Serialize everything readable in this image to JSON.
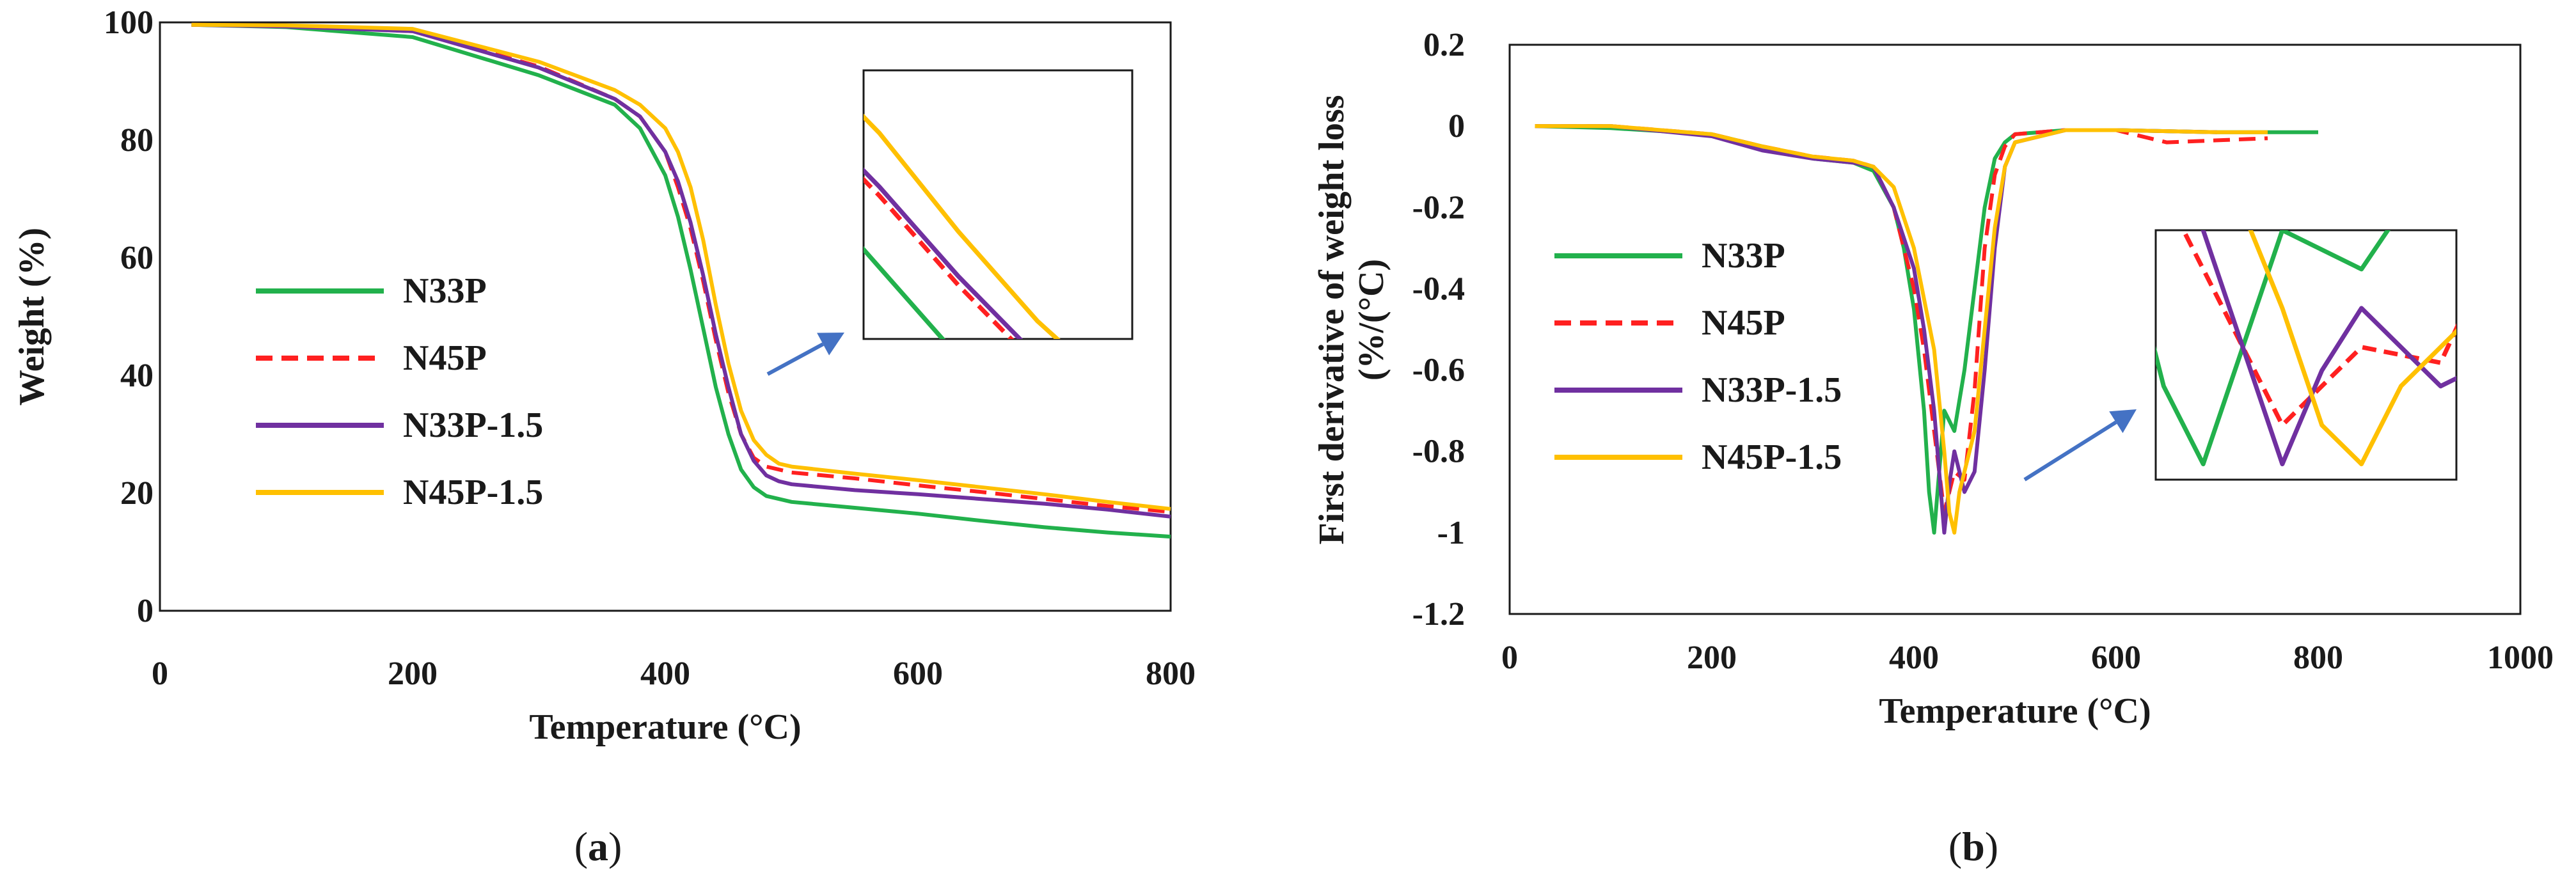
{
  "chart_data": [
    {
      "type": "line",
      "panel_label": "(a)",
      "panel_letter": "a",
      "title": "",
      "xlabel": "Temperature (°C)",
      "ylabel": "Weight (%)",
      "xlim": [
        0,
        800
      ],
      "ylim": [
        0,
        100
      ],
      "xticks": [
        0,
        200,
        400,
        600,
        800
      ],
      "yticks": [
        0,
        20,
        40,
        60,
        80,
        100
      ],
      "xtick_labels": [
        "0",
        "200",
        "400",
        "600",
        "800"
      ],
      "ytick_labels": [
        "0",
        "20",
        "40",
        "60",
        "80",
        "100"
      ],
      "grid": false,
      "legend_position": "left-center",
      "series": [
        {
          "name": "N33P",
          "color": "#22b14c",
          "dash": "solid",
          "x": [
            25,
            100,
            200,
            300,
            360,
            380,
            400,
            410,
            420,
            430,
            440,
            450,
            460,
            470,
            480,
            490,
            500,
            550,
            600,
            650,
            700,
            750,
            800
          ],
          "y": [
            99.6,
            99.2,
            97.5,
            91,
            86,
            82,
            74,
            67,
            58,
            48,
            38,
            30,
            24,
            21,
            19.5,
            19,
            18.5,
            17.5,
            16.5,
            15.3,
            14.2,
            13.3,
            12.6
          ]
        },
        {
          "name": "N45P",
          "color": "#ff2020",
          "dash": "dashed",
          "x": [
            25,
            100,
            200,
            300,
            360,
            380,
            400,
            410,
            420,
            430,
            440,
            450,
            460,
            470,
            480,
            490,
            500,
            550,
            600,
            650,
            700,
            750,
            800
          ],
          "y": [
            99.6,
            99.4,
            98.5,
            92.5,
            87,
            84,
            78,
            72,
            65,
            56,
            46,
            37,
            30,
            26,
            24.5,
            24,
            23.5,
            22.5,
            21.3,
            20.2,
            19,
            17.8,
            16.8
          ]
        },
        {
          "name": "N33P-1.5",
          "color": "#7030a0",
          "dash": "solid",
          "x": [
            25,
            100,
            200,
            300,
            360,
            380,
            400,
            410,
            420,
            430,
            440,
            450,
            460,
            470,
            480,
            490,
            500,
            550,
            600,
            650,
            700,
            750,
            800
          ],
          "y": [
            99.6,
            99.3,
            98.5,
            92.3,
            87,
            84,
            78,
            73,
            66,
            57,
            47,
            38,
            30,
            25.5,
            23,
            22,
            21.5,
            20.5,
            19.8,
            19,
            18.2,
            17.2,
            16
          ]
        },
        {
          "name": "N45P-1.5",
          "color": "#ffc000",
          "dash": "solid",
          "x": [
            25,
            100,
            200,
            300,
            360,
            380,
            400,
            410,
            420,
            430,
            440,
            450,
            460,
            470,
            480,
            490,
            500,
            550,
            600,
            650,
            700,
            750,
            800
          ],
          "y": [
            99.6,
            99.5,
            98.9,
            93.3,
            88.5,
            86,
            82,
            78,
            72,
            63,
            52,
            42,
            34,
            29,
            26.5,
            25,
            24.5,
            23.3,
            22.2,
            21,
            19.8,
            18.5,
            17.3
          ]
        }
      ]
    },
    {
      "type": "line",
      "panel_label": "(b)",
      "panel_letter": "b",
      "title": "",
      "xlabel": "Temperature (°C)",
      "ylabel_line1": "First derivative of weight loss",
      "ylabel_line2": "(%/(°C)",
      "xlim": [
        0,
        1000
      ],
      "ylim": [
        -1.2,
        0.2
      ],
      "xticks": [
        0,
        200,
        400,
        600,
        800,
        1000
      ],
      "yticks": [
        0.2,
        0,
        -0.2,
        -0.4,
        -0.6,
        -0.8,
        -1,
        -1.2
      ],
      "xtick_labels": [
        "0",
        "200",
        "400",
        "600",
        "800",
        "1000"
      ],
      "ytick_labels": [
        "0.2",
        "0",
        "-0.2",
        "-0.4",
        "-0.6",
        "-0.8",
        "-1",
        "-1.2"
      ],
      "grid": false,
      "legend_position": "left-center",
      "series": [
        {
          "name": "N33P",
          "color": "#22b14c",
          "dash": "solid",
          "x": [
            25,
            100,
            200,
            250,
            300,
            340,
            360,
            380,
            390,
            400,
            410,
            415,
            420,
            425,
            430,
            440,
            450,
            460,
            470,
            480,
            490,
            500,
            550,
            600,
            700,
            800
          ],
          "y": [
            0,
            -0.005,
            -0.02,
            -0.05,
            -0.08,
            -0.09,
            -0.11,
            -0.2,
            -0.3,
            -0.45,
            -0.7,
            -0.9,
            -1.0,
            -0.85,
            -0.7,
            -0.75,
            -0.6,
            -0.4,
            -0.2,
            -0.08,
            -0.04,
            -0.02,
            -0.01,
            -0.01,
            -0.015,
            -0.015
          ]
        },
        {
          "name": "N45P",
          "color": "#ff2020",
          "dash": "dashed",
          "x": [
            25,
            100,
            200,
            250,
            300,
            340,
            360,
            380,
            390,
            400,
            410,
            420,
            425,
            430,
            435,
            440,
            450,
            460,
            470,
            480,
            490,
            500,
            550,
            600,
            650,
            700,
            750
          ],
          "y": [
            0,
            0,
            -0.02,
            -0.05,
            -0.075,
            -0.085,
            -0.1,
            -0.2,
            -0.3,
            -0.4,
            -0.55,
            -0.75,
            -0.85,
            -0.95,
            -0.9,
            -0.85,
            -0.87,
            -0.65,
            -0.3,
            -0.12,
            -0.05,
            -0.02,
            -0.01,
            -0.01,
            -0.04,
            -0.035,
            -0.03
          ]
        },
        {
          "name": "N33P-1.5",
          "color": "#7030a0",
          "dash": "solid",
          "x": [
            25,
            100,
            200,
            250,
            300,
            340,
            360,
            380,
            400,
            410,
            420,
            425,
            430,
            435,
            440,
            450,
            460,
            470,
            480,
            490,
            500,
            550,
            600,
            700
          ],
          "y": [
            0,
            0,
            -0.025,
            -0.06,
            -0.08,
            -0.09,
            -0.1,
            -0.2,
            -0.35,
            -0.5,
            -0.7,
            -0.85,
            -1.0,
            -0.88,
            -0.8,
            -0.9,
            -0.85,
            -0.6,
            -0.3,
            -0.1,
            -0.04,
            -0.01,
            -0.01,
            -0.015
          ]
        },
        {
          "name": "N45P-1.5",
          "color": "#ffc000",
          "dash": "solid",
          "x": [
            25,
            100,
            200,
            250,
            300,
            340,
            360,
            380,
            400,
            420,
            430,
            435,
            440,
            445,
            450,
            460,
            470,
            480,
            490,
            500,
            550,
            600,
            700,
            750
          ],
          "y": [
            0,
            0,
            -0.02,
            -0.05,
            -0.075,
            -0.085,
            -0.1,
            -0.15,
            -0.3,
            -0.55,
            -0.8,
            -0.95,
            -1.0,
            -0.9,
            -0.85,
            -0.75,
            -0.5,
            -0.25,
            -0.1,
            -0.04,
            -0.01,
            -0.01,
            -0.015,
            -0.015
          ]
        }
      ]
    }
  ]
}
